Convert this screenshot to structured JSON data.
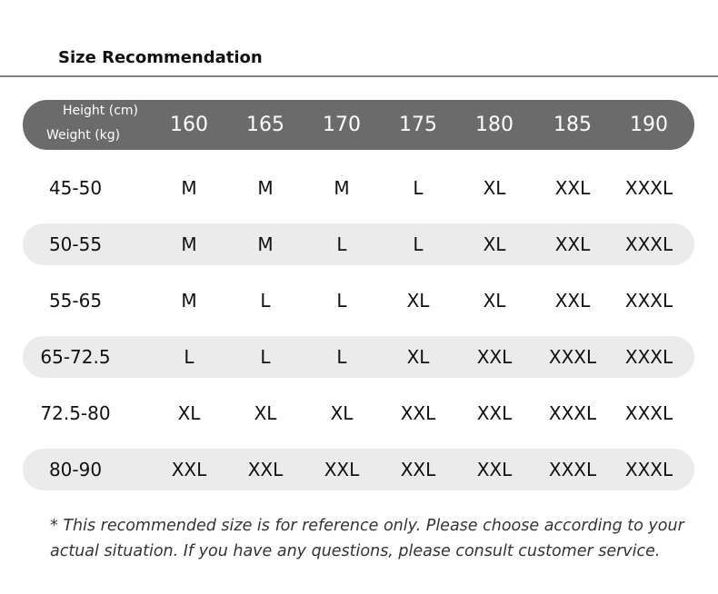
{
  "title": "Size Recommendation",
  "header": {
    "height_label": "Height (cm)",
    "weight_label": "Weight (kg)",
    "heights": [
      "160",
      "165",
      "170",
      "175",
      "180",
      "185",
      "190"
    ]
  },
  "rows": [
    {
      "weight": "45-50",
      "sizes": [
        "M",
        "M",
        "M",
        "L",
        "XL",
        "XXL",
        "XXXL"
      ]
    },
    {
      "weight": "50-55",
      "sizes": [
        "M",
        "M",
        "L",
        "L",
        "XL",
        "XXL",
        "XXXL"
      ]
    },
    {
      "weight": "55-65",
      "sizes": [
        "M",
        "L",
        "L",
        "XL",
        "XL",
        "XXL",
        "XXXL"
      ]
    },
    {
      "weight": "65-72.5",
      "sizes": [
        "L",
        "L",
        "L",
        "XL",
        "XXL",
        "XXXL",
        "XXXL"
      ]
    },
    {
      "weight": "72.5-80",
      "sizes": [
        "XL",
        "XL",
        "XL",
        "XXL",
        "XXL",
        "XXXL",
        "XXXL"
      ]
    },
    {
      "weight": "80-90",
      "sizes": [
        "XXL",
        "XXL",
        "XXL",
        "XXL",
        "XXL",
        "XXXL",
        "XXXL"
      ]
    }
  ],
  "note": "* This recommended size is for reference only. Please choose according to your actual situation. If you have any questions, please consult customer service.",
  "colors": {
    "header_bg": "#6b6b6b",
    "stripe": "#ebebeb"
  }
}
